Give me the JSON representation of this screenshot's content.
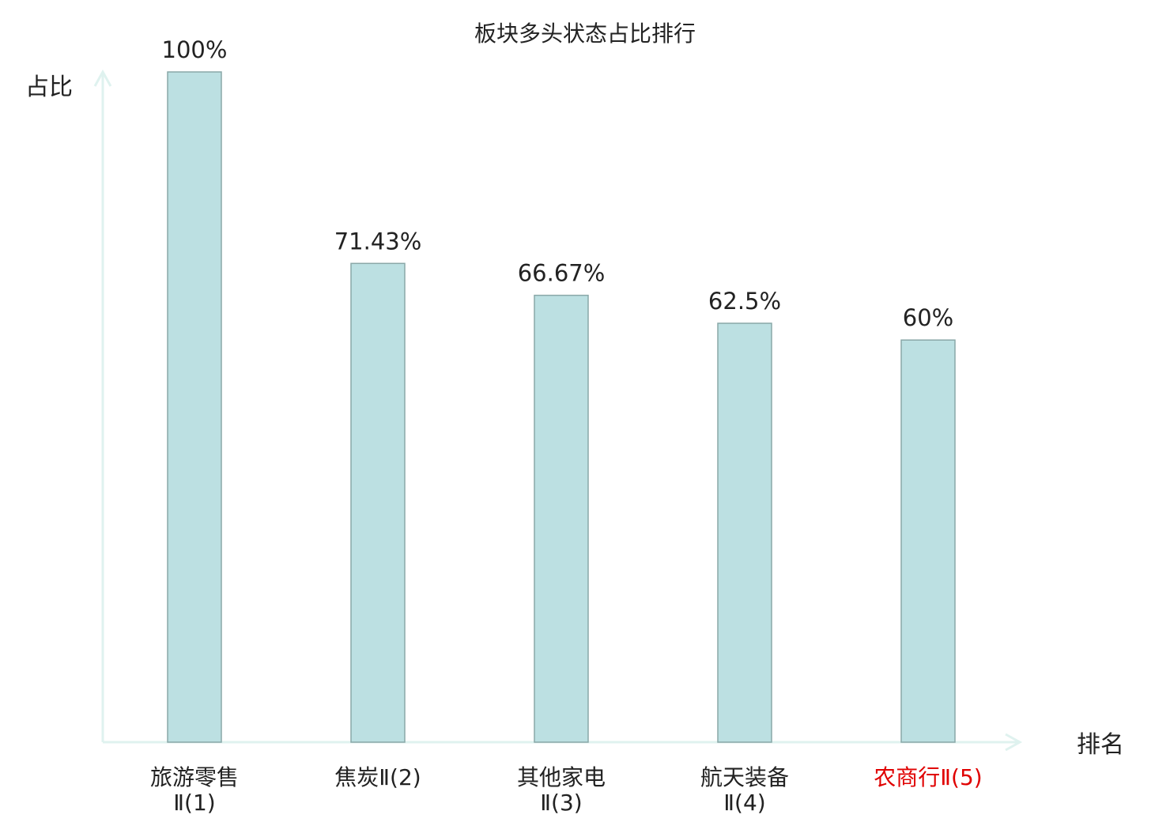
{
  "chart_data": {
    "type": "bar",
    "title": "板块多头状态占比排行",
    "y_label": "占比",
    "x_label": "排名",
    "categories": [
      "旅游零售Ⅱ(1)",
      "焦炭Ⅱ(2)",
      "其他家电Ⅱ(3)",
      "航天装备Ⅱ(4)",
      "农商行Ⅱ(5)"
    ],
    "values": [
      100,
      71.43,
      66.67,
      62.5,
      60
    ],
    "value_labels": [
      "100%",
      "71.43%",
      "66.67%",
      "62.5%",
      "60%"
    ],
    "color": "#bce0e2",
    "edge_color": "#8aa8a8",
    "axis_color": "#dff2ef",
    "label_colors": [
      "#222222",
      "#222222",
      "#222222",
      "#222222",
      "#e00000"
    ],
    "ylim": [
      0,
      100
    ]
  }
}
